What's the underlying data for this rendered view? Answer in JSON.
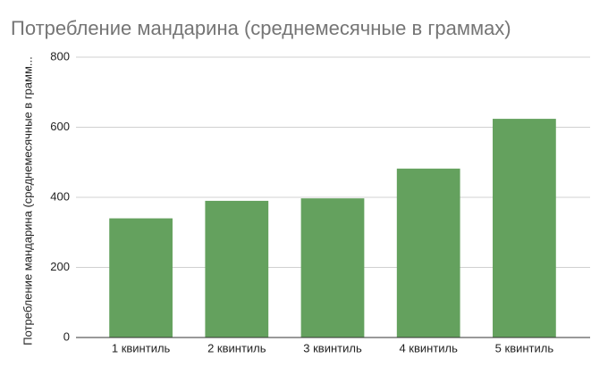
{
  "chart_data": {
    "type": "bar",
    "title": "Потребление мандарина (среднемесячные в граммах)",
    "y_label": "Потребление мандарина (среднемесячные в грамм...",
    "categories": [
      "1 квинтиль",
      "2 квинтиль",
      "3 квинтиль",
      "4 квинтиль",
      "5 квинтиль"
    ],
    "values": [
      340,
      390,
      397,
      482,
      624
    ],
    "color": "#64a15e",
    "ylim": [
      0,
      800
    ],
    "yticks": [
      0,
      200,
      400,
      600,
      800
    ],
    "grid": true
  }
}
